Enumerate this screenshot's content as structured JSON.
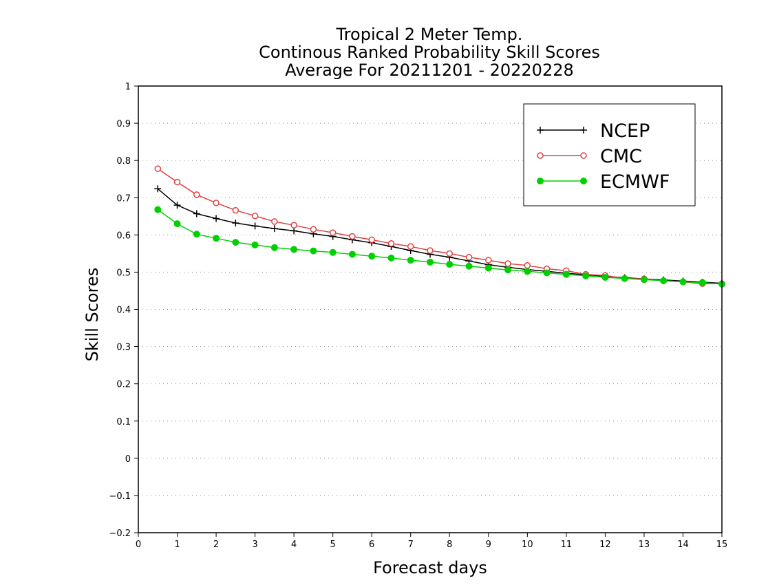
{
  "chart_data": {
    "type": "line",
    "title": [
      "Tropical 2 Meter Temp.",
      "Continous Ranked Probability Skill Scores",
      "Average For 20211201 - 20220228"
    ],
    "xlabel": "Forecast days",
    "ylabel": "Skill Scores",
    "xlim": [
      0,
      15
    ],
    "ylim": [
      -0.2,
      1
    ],
    "xticks": [
      "0",
      "1",
      "2",
      "3",
      "4",
      "5",
      "6",
      "7",
      "8",
      "9",
      "10",
      "11",
      "12",
      "13",
      "14",
      "15"
    ],
    "yticks": [
      "−0.2",
      "−0.1",
      "0",
      "0.1",
      "0.2",
      "0.3",
      "0.4",
      "0.5",
      "0.6",
      "0.7",
      "0.8",
      "0.9",
      "1"
    ],
    "grid": "horizontal dotted",
    "legend_position": "top-right",
    "x": [
      0.5,
      1,
      1.5,
      2,
      2.5,
      3,
      3.5,
      4,
      4.5,
      5,
      5.5,
      6,
      6.5,
      7,
      7.5,
      8,
      8.5,
      9,
      9.5,
      10,
      10.5,
      11,
      11.5,
      12,
      12.5,
      13,
      13.5,
      14,
      14.5,
      15
    ],
    "series": [
      {
        "name": "NCEP",
        "color": "#000000",
        "marker": "plus",
        "values": [
          0.724,
          0.68,
          0.657,
          0.644,
          0.632,
          0.624,
          0.617,
          0.611,
          0.603,
          0.596,
          0.587,
          0.579,
          0.569,
          0.558,
          0.548,
          0.54,
          0.53,
          0.52,
          0.513,
          0.507,
          0.502,
          0.497,
          0.493,
          0.489,
          0.485,
          0.482,
          0.479,
          0.476,
          0.473,
          0.47
        ]
      },
      {
        "name": "CMC",
        "color": "#e04040",
        "marker": "open-circle",
        "values": [
          0.778,
          0.742,
          0.708,
          0.686,
          0.666,
          0.651,
          0.636,
          0.626,
          0.615,
          0.606,
          0.596,
          0.587,
          0.577,
          0.569,
          0.558,
          0.55,
          0.54,
          0.532,
          0.523,
          0.518,
          0.509,
          0.504,
          0.494,
          0.491,
          0.483,
          0.482,
          0.477,
          0.474,
          0.469,
          0.469
        ]
      },
      {
        "name": "ECMWF",
        "color": "#00d000",
        "marker": "filled-circle",
        "values": [
          0.668,
          0.63,
          0.602,
          0.591,
          0.58,
          0.573,
          0.566,
          0.561,
          0.557,
          0.553,
          0.548,
          0.543,
          0.538,
          0.532,
          0.527,
          0.521,
          0.516,
          0.511,
          0.506,
          0.502,
          0.498,
          0.494,
          0.49,
          0.486,
          0.483,
          0.48,
          0.477,
          0.474,
          0.472,
          0.468
        ]
      }
    ]
  }
}
